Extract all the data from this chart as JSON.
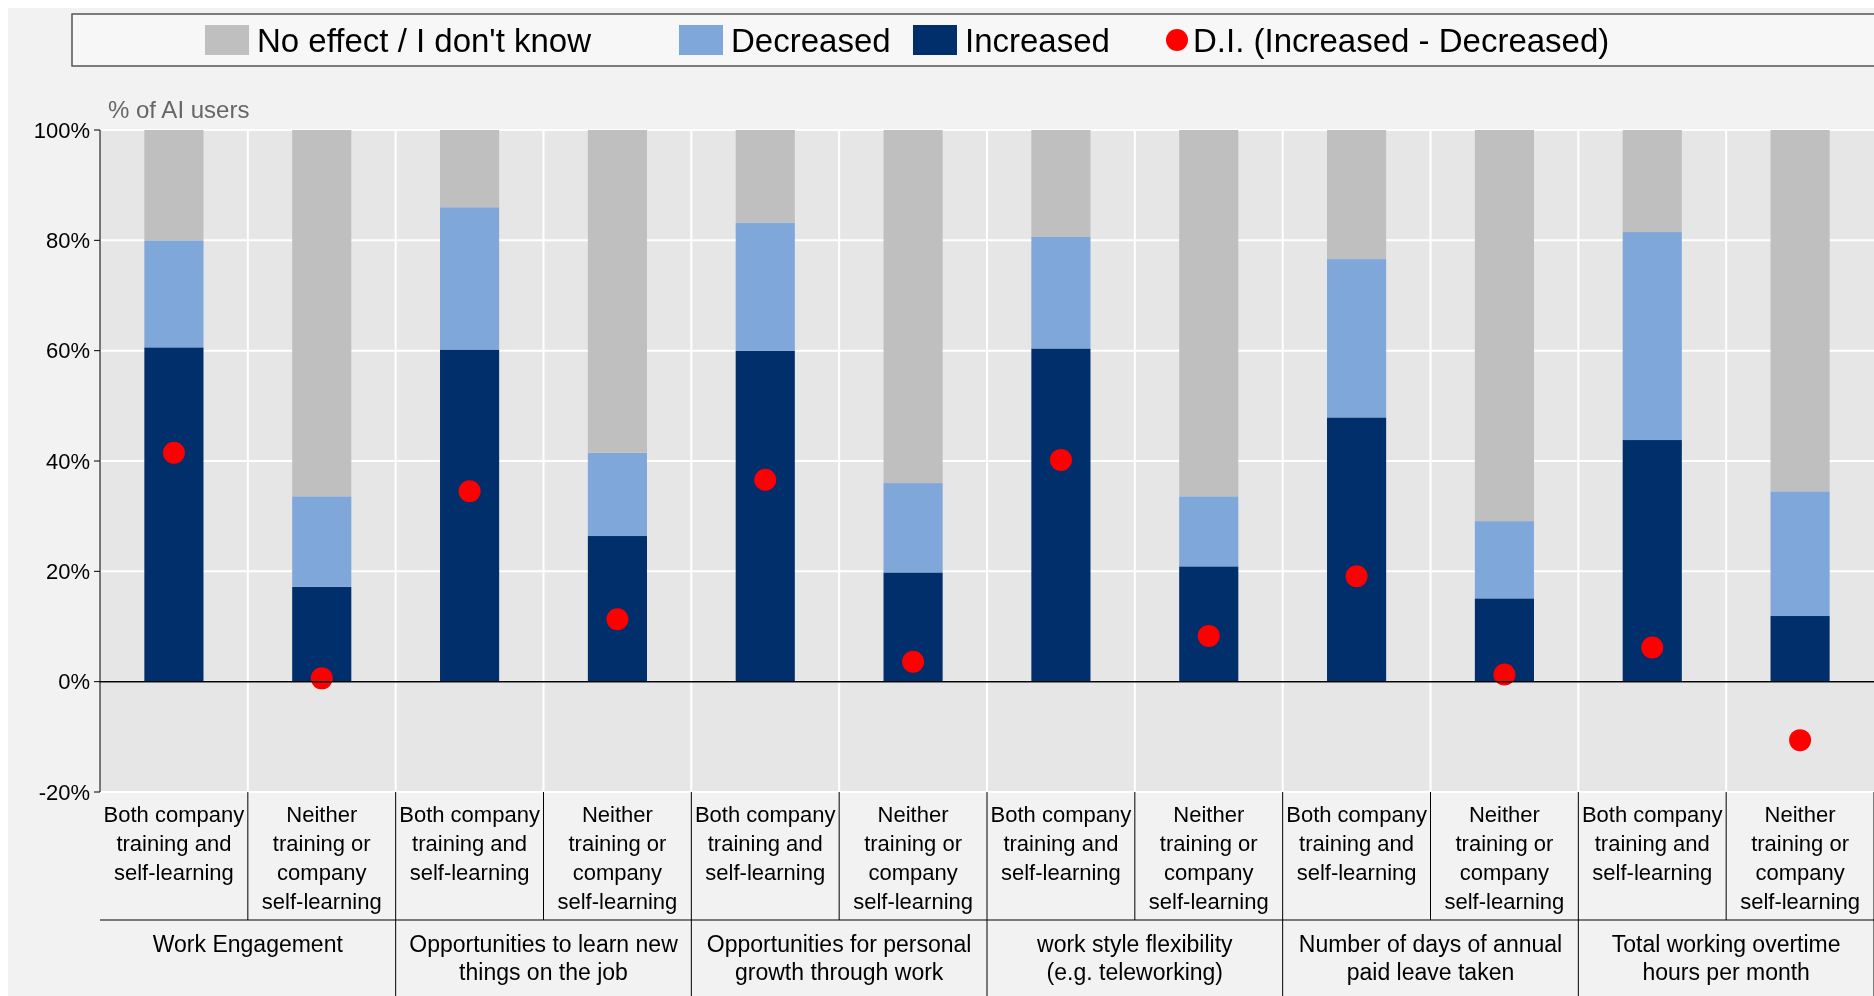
{
  "chart_data": {
    "type": "bar",
    "stacked": true,
    "ylabel": "% of AI users",
    "categories": [
      "Both company training and self-learning",
      "Neither training or company self-learning",
      "Both company training and self-learning",
      "Neither training or company self-learning",
      "Both company training and self-learning",
      "Neither training or company self-learning",
      "Both company training and self-learning",
      "Neither training or company self-learning",
      "Both company training and self-learning",
      "Neither training or company self-learning",
      "Both company training and self-learning",
      "Neither training or company self-learning"
    ],
    "series": [
      {
        "name": "Increased",
        "color": "#002f6c",
        "values": [
          60.6,
          17.2,
          60.2,
          26.4,
          60.0,
          19.8,
          60.4,
          20.9,
          47.9,
          15.1,
          43.8,
          11.9
        ]
      },
      {
        "name": "Decreased",
        "color": "#7fa7d9",
        "values": [
          19.4,
          16.4,
          25.8,
          15.1,
          23.2,
          16.2,
          20.2,
          12.7,
          28.7,
          14.0,
          37.7,
          22.6
        ]
      },
      {
        "name": "No effect / I don't know",
        "color": "#bfbfbf",
        "values": [
          20.0,
          66.4,
          14.0,
          58.5,
          16.8,
          64.0,
          19.4,
          66.4,
          23.4,
          70.9,
          18.5,
          65.5
        ]
      },
      {
        "name": "D.I. (Increased - Decreased)",
        "type": "scatter",
        "color": "#ff0000",
        "values": [
          41.5,
          0.6,
          34.5,
          11.3,
          36.6,
          3.6,
          40.2,
          8.3,
          19.1,
          1.3,
          6.2,
          -10.6
        ]
      }
    ],
    "annotations": [
      "Work Engagement",
      "Opportunities to learn new things on the job",
      "Opportunities for personal growth through work",
      "work style flexibility (e.g. teleworking)",
      "Number of days of annual paid leave taken",
      "Total working overtime hours per month"
    ],
    "ylim": [
      -20,
      100
    ],
    "yticks": [
      {
        "value": -20,
        "label": "-20%"
      },
      {
        "value": 0,
        "label": "0%"
      },
      {
        "value": 20,
        "label": "20%"
      },
      {
        "value": 40,
        "label": "40%"
      },
      {
        "value": 60,
        "label": "60%"
      },
      {
        "value": 80,
        "label": "80%"
      },
      {
        "value": 100,
        "label": "100%"
      }
    ],
    "grid": "y",
    "legend": "top",
    "marker": "circle"
  }
}
